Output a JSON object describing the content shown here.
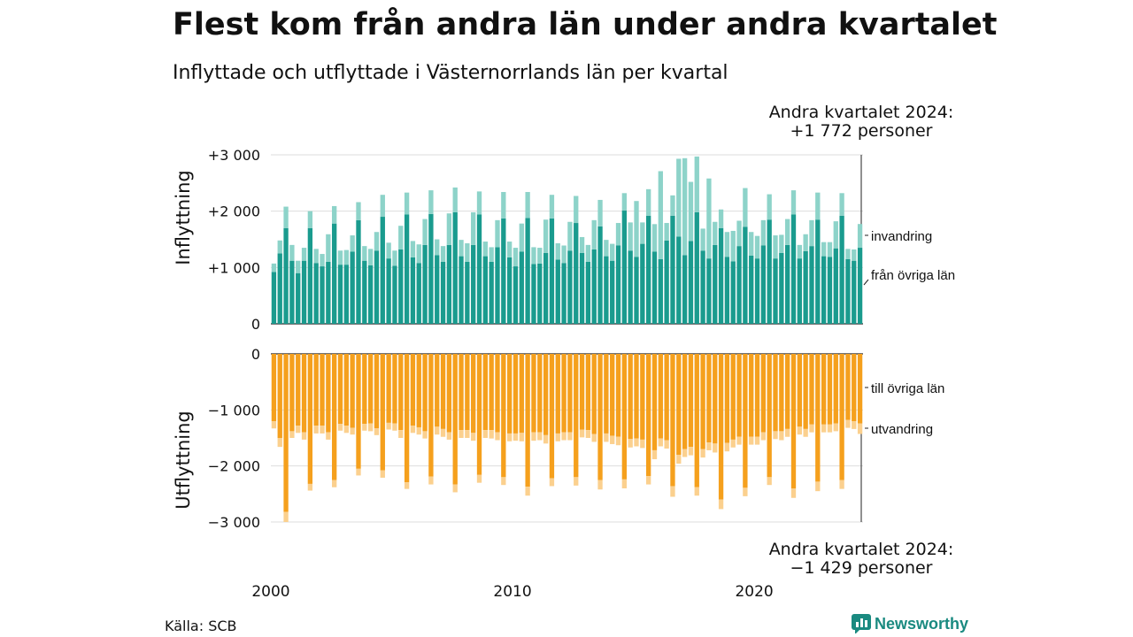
{
  "title": "Flest kom från andra län under andra kvartalet",
  "subtitle": "Inflyttade och utflyttade i Västernorrlands län per kvartal",
  "source": "Källa: SCB",
  "brand": "Newsworthy",
  "colors": {
    "inrikes_in": "#1a9b8e",
    "invandring": "#8dd3c9",
    "inrikes_ut": "#f5a01d",
    "utvandring": "#fbd08e",
    "grid": "#dddddd"
  },
  "chart_data": [
    {
      "type": "bar",
      "stacked": true,
      "ylabel": "Inflyttning",
      "ylim": [
        0,
        3000
      ],
      "yticks": [
        0,
        1000,
        2000,
        3000
      ],
      "ytick_labels": [
        "0",
        "+1 000",
        "+2 000",
        "+3 000"
      ],
      "annotation_lines": [
        "Andra kvartalet 2024:",
        "+1 772 personer"
      ],
      "legend_labels": [
        "invandring",
        "från övriga län"
      ],
      "x": [
        "2000 Q1",
        "2000 Q2",
        "2000 Q3",
        "2000 Q4",
        "2001 Q1",
        "2001 Q2",
        "2001 Q3",
        "2001 Q4",
        "2002 Q1",
        "2002 Q2",
        "2002 Q3",
        "2002 Q4",
        "2003 Q1",
        "2003 Q2",
        "2003 Q3",
        "2003 Q4",
        "2004 Q1",
        "2004 Q2",
        "2004 Q3",
        "2004 Q4",
        "2005 Q1",
        "2005 Q2",
        "2005 Q3",
        "2005 Q4",
        "2006 Q1",
        "2006 Q2",
        "2006 Q3",
        "2006 Q4",
        "2007 Q1",
        "2007 Q2",
        "2007 Q3",
        "2007 Q4",
        "2008 Q1",
        "2008 Q2",
        "2008 Q3",
        "2008 Q4",
        "2009 Q1",
        "2009 Q2",
        "2009 Q3",
        "2009 Q4",
        "2010 Q1",
        "2010 Q2",
        "2010 Q3",
        "2010 Q4",
        "2011 Q1",
        "2011 Q2",
        "2011 Q3",
        "2011 Q4",
        "2012 Q1",
        "2012 Q2",
        "2012 Q3",
        "2012 Q4",
        "2013 Q1",
        "2013 Q2",
        "2013 Q3",
        "2013 Q4",
        "2014 Q1",
        "2014 Q2",
        "2014 Q3",
        "2014 Q4",
        "2015 Q1",
        "2015 Q2",
        "2015 Q3",
        "2015 Q4",
        "2016 Q1",
        "2016 Q2",
        "2016 Q3",
        "2016 Q4",
        "2017 Q1",
        "2017 Q2",
        "2017 Q3",
        "2017 Q4",
        "2018 Q1",
        "2018 Q2",
        "2018 Q3",
        "2018 Q4",
        "2019 Q1",
        "2019 Q2",
        "2019 Q3",
        "2019 Q4",
        "2020 Q1",
        "2020 Q2",
        "2020 Q3",
        "2020 Q4",
        "2021 Q1",
        "2021 Q2",
        "2021 Q3",
        "2021 Q4",
        "2022 Q1",
        "2022 Q2",
        "2022 Q3",
        "2022 Q4",
        "2023 Q1",
        "2023 Q2",
        "2023 Q3",
        "2023 Q4",
        "2024 Q1",
        "2024 Q2"
      ],
      "x_tick_labels": [
        "2000",
        "2010",
        "2020"
      ],
      "series": [
        {
          "name": "från övriga län",
          "values": [
            920,
            1250,
            1700,
            1120,
            900,
            1120,
            1700,
            1080,
            1020,
            1100,
            1780,
            1050,
            1050,
            1280,
            1840,
            1120,
            1040,
            1300,
            1900,
            1160,
            1030,
            1320,
            1940,
            1180,
            1080,
            1400,
            1950,
            1220,
            1100,
            1400,
            1980,
            1200,
            1100,
            1400,
            1940,
            1200,
            1100,
            1360,
            1870,
            1180,
            1020,
            1280,
            1880,
            1060,
            1070,
            1260,
            1870,
            1140,
            1080,
            1300,
            1790,
            1260,
            1100,
            1320,
            1730,
            1200,
            1120,
            1390,
            2010,
            1300,
            1190,
            1420,
            1920,
            1280,
            1150,
            1480,
            1920,
            1550,
            1220,
            1470,
            1980,
            1300,
            1160,
            1400,
            1700,
            1190,
            1110,
            1380,
            1720,
            1210,
            1160,
            1390,
            1850,
            1160,
            1260,
            1400,
            1940,
            1160,
            1290,
            1380,
            1850,
            1200,
            1190,
            1340,
            1920,
            1150,
            1120,
            1350
          ]
        },
        {
          "name": "invandring",
          "values": [
            150,
            230,
            380,
            280,
            220,
            230,
            300,
            250,
            220,
            490,
            310,
            250,
            260,
            290,
            320,
            260,
            290,
            330,
            390,
            280,
            270,
            420,
            390,
            290,
            330,
            460,
            420,
            280,
            280,
            560,
            440,
            290,
            330,
            580,
            410,
            260,
            260,
            480,
            470,
            280,
            330,
            500,
            460,
            300,
            280,
            590,
            420,
            290,
            310,
            510,
            480,
            280,
            300,
            520,
            470,
            290,
            300,
            400,
            310,
            500,
            990,
            380,
            470,
            490,
            1560,
            310,
            360,
            1380,
            1720,
            1050,
            990,
            390,
            1420,
            410,
            330,
            440,
            540,
            450,
            690,
            420,
            400,
            450,
            450,
            410,
            320,
            460,
            430,
            240,
            300,
            460,
            480,
            250,
            260,
            480,
            400,
            180,
            200,
            422
          ]
        }
      ]
    },
    {
      "type": "bar",
      "stacked": true,
      "ylabel": "Utflyttning",
      "ylim": [
        -3000,
        0
      ],
      "yticks": [
        0,
        -1000,
        -2000,
        -3000
      ],
      "ytick_labels": [
        "0",
        "−1 000",
        "−2 000",
        "−3 000"
      ],
      "annotation_lines": [
        "Andra kvartalet 2024:",
        "−1 429 personer"
      ],
      "legend_labels": [
        "till övriga län",
        "utvandring"
      ],
      "x_ref": "same as first panel",
      "series": [
        {
          "name": "till övriga län",
          "values": [
            -1200,
            -1500,
            -2820,
            -1380,
            -1280,
            -1400,
            -2320,
            -1280,
            -1280,
            -1400,
            -2250,
            -1250,
            -1280,
            -1320,
            -2050,
            -1250,
            -1240,
            -1330,
            -2080,
            -1230,
            -1240,
            -1360,
            -2290,
            -1280,
            -1310,
            -1380,
            -2190,
            -1300,
            -1340,
            -1400,
            -2330,
            -1360,
            -1360,
            -1410,
            -2160,
            -1360,
            -1360,
            -1400,
            -2200,
            -1420,
            -1420,
            -1410,
            -2370,
            -1400,
            -1400,
            -1450,
            -2220,
            -1420,
            -1400,
            -1400,
            -2200,
            -1350,
            -1360,
            -1430,
            -2250,
            -1420,
            -1460,
            -1480,
            -2240,
            -1520,
            -1510,
            -1530,
            -2180,
            -1720,
            -1510,
            -1540,
            -2360,
            -1800,
            -1700,
            -1660,
            -2380,
            -1700,
            -1580,
            -1600,
            -2600,
            -1590,
            -1530,
            -1480,
            -2390,
            -1480,
            -1480,
            -1400,
            -2200,
            -1380,
            -1380,
            -1340,
            -2400,
            -1300,
            -1340,
            -1260,
            -2280,
            -1260,
            -1260,
            -1240,
            -2250,
            -1180,
            -1200,
            -1240
          ]
        },
        {
          "name": "utvandring",
          "values": [
            -130,
            -160,
            -180,
            -120,
            -130,
            -130,
            -120,
            -140,
            -140,
            -130,
            -130,
            -120,
            -130,
            -120,
            -120,
            -120,
            -140,
            -120,
            -130,
            -120,
            -130,
            -140,
            -120,
            -130,
            -130,
            -130,
            -140,
            -140,
            -140,
            -130,
            -140,
            -140,
            -140,
            -140,
            -140,
            -140,
            -150,
            -140,
            -140,
            -140,
            -130,
            -150,
            -160,
            -150,
            -140,
            -150,
            -140,
            -140,
            -140,
            -140,
            -150,
            -140,
            -140,
            -140,
            -170,
            -150,
            -150,
            -150,
            -160,
            -150,
            -140,
            -150,
            -150,
            -160,
            -140,
            -150,
            -190,
            -160,
            -140,
            -150,
            -150,
            -150,
            -140,
            -160,
            -170,
            -150,
            -140,
            -140,
            -150,
            -140,
            -140,
            -140,
            -140,
            -140,
            -160,
            -140,
            -170,
            -140,
            -140,
            -140,
            -170,
            -140,
            -140,
            -140,
            -160,
            -140,
            -140,
            -189
          ]
        }
      ]
    }
  ]
}
